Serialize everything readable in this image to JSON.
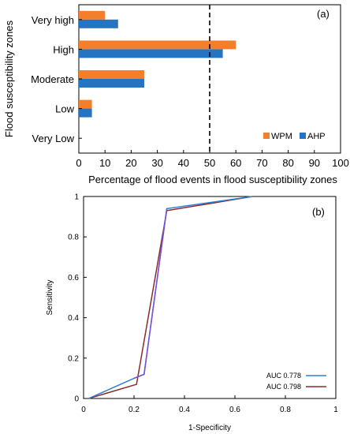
{
  "chart_data": [
    {
      "type": "bar",
      "orientation": "horizontal",
      "panel_label": "(a)",
      "categories": [
        "Very high",
        "High",
        "Moderate",
        "Low",
        "Very Low"
      ],
      "series": [
        {
          "name": "WPM",
          "values": [
            10,
            60,
            25,
            5,
            0
          ],
          "color": "#F47E2A"
        },
        {
          "name": "AHP",
          "values": [
            15,
            55,
            25,
            5,
            0
          ],
          "color": "#2474C2"
        }
      ],
      "xlabel": "Percentage of flood events in flood susceptibility zones",
      "ylabel": "Flood susceptibility zones",
      "xlim": [
        0,
        100
      ],
      "xticks": [
        0,
        10,
        20,
        30,
        40,
        50,
        60,
        70,
        80,
        90,
        100
      ],
      "reference_line": {
        "x": 50,
        "style": "dashed"
      },
      "legend_position": "bottom-right",
      "grid": false
    },
    {
      "type": "line",
      "panel_label": "(b)",
      "xlabel": "1-Specificity",
      "ylabel": "Sensitivity",
      "xlim": [
        0,
        1
      ],
      "ylim": [
        0,
        1
      ],
      "xticks": [
        "0",
        "0.2",
        "0.4",
        "0.6",
        "0.8",
        "1"
      ],
      "yticks": [
        "0",
        "0.2",
        "0.4",
        "0.6",
        "0.8",
        "1"
      ],
      "series": [
        {
          "name": "AUC 0.778",
          "color": "#2F80D0",
          "x": [
            0.02,
            0.2,
            0.24,
            0.33,
            0.67
          ],
          "y": [
            0,
            0.1,
            0.12,
            0.94,
            1
          ]
        },
        {
          "name": "AUC 0.798",
          "color": "#8B2A2A",
          "x": [
            0.02,
            0.21,
            0.33,
            0.67
          ],
          "y": [
            0,
            0.07,
            0.93,
            1
          ]
        }
      ],
      "extra_segment": {
        "color": "#7B4CE0",
        "x": [
          0.2,
          0.24,
          0.33
        ],
        "y": [
          0.1,
          0.12,
          0.94
        ]
      },
      "legend_position": "bottom-right",
      "grid": false
    }
  ]
}
